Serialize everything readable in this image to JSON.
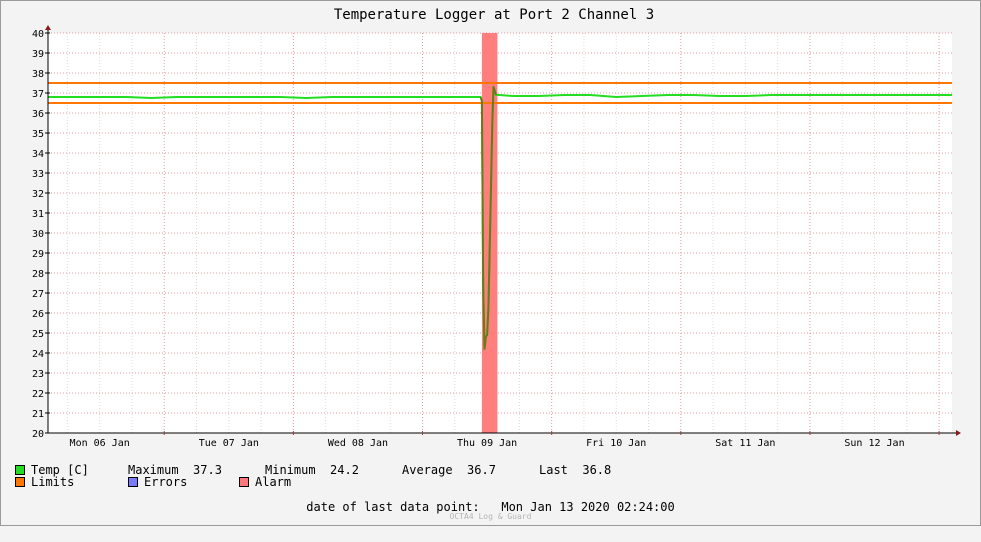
{
  "chart_data": {
    "type": "line",
    "title": "Temperature Logger at Port 2 Channel 3",
    "xlabel": "",
    "ylabel": "",
    "ylim": [
      20,
      40
    ],
    "yticks": [
      20,
      21,
      22,
      23,
      24,
      25,
      26,
      27,
      28,
      29,
      30,
      31,
      32,
      33,
      34,
      35,
      36,
      37,
      38,
      39,
      40
    ],
    "xlim": [
      -0.4,
      6.6
    ],
    "x_tick_labels": [
      {
        "x": 0,
        "label": "Mon 06 Jan"
      },
      {
        "x": 1,
        "label": "Tue 07 Jan"
      },
      {
        "x": 2,
        "label": "Wed 08 Jan"
      },
      {
        "x": 3,
        "label": "Thu 09 Jan"
      },
      {
        "x": 4,
        "label": "Fri 10 Jan"
      },
      {
        "x": 5,
        "label": "Sat 11 Jan"
      },
      {
        "x": 6,
        "label": "Sun 12 Jan"
      }
    ],
    "grid": true,
    "series": [
      {
        "name": "Temp [C]",
        "color": "#22dd22",
        "x": [
          -0.4,
          -0.2,
          0.0,
          0.2,
          0.4,
          0.6,
          0.8,
          1.0,
          1.2,
          1.4,
          1.6,
          1.8,
          2.0,
          2.2,
          2.4,
          2.6,
          2.8,
          2.9,
          2.95,
          2.96,
          2.97,
          2.98,
          2.99,
          3.0,
          3.01,
          3.02,
          3.03,
          3.04,
          3.05,
          3.07,
          3.1,
          3.2,
          3.4,
          3.6,
          3.8,
          4.0,
          4.2,
          4.4,
          4.6,
          4.8,
          5.0,
          5.2,
          5.4,
          5.6,
          5.8,
          6.0,
          6.2,
          6.4,
          6.6
        ],
        "y": [
          36.8,
          36.8,
          36.8,
          36.8,
          36.75,
          36.8,
          36.8,
          36.8,
          36.8,
          36.8,
          36.75,
          36.8,
          36.8,
          36.8,
          36.8,
          36.8,
          36.8,
          36.8,
          36.8,
          36.6,
          27.3,
          24.2,
          24.8,
          24.9,
          26.2,
          29.2,
          32.3,
          35.5,
          37.3,
          36.9,
          36.9,
          36.85,
          36.85,
          36.9,
          36.9,
          36.8,
          36.85,
          36.9,
          36.9,
          36.85,
          36.85,
          36.9,
          36.9,
          36.9,
          36.9,
          36.9,
          36.9,
          36.9,
          36.9
        ]
      },
      {
        "name": "Limits",
        "color": "#ff7700",
        "values": [
          36.5,
          37.5
        ]
      },
      {
        "name": "Errors",
        "color": "#7a7aff",
        "values": []
      },
      {
        "name": "Alarm",
        "color": "#ff7777",
        "ranges": [
          [
            2.96,
            3.08
          ]
        ]
      }
    ]
  },
  "stats": {
    "max_label": "Maximum",
    "max_value": "37.3",
    "min_label": "Minimum",
    "min_value": "24.2",
    "avg_label": "Average",
    "avg_value": "36.7",
    "last_label": "Last",
    "last_value": "36.8"
  },
  "footer": {
    "date_label": "date of last data point:",
    "date_value": "Mon Jan 13 2020 02:24:00",
    "brand": "OCTA4 Log & Guard"
  }
}
